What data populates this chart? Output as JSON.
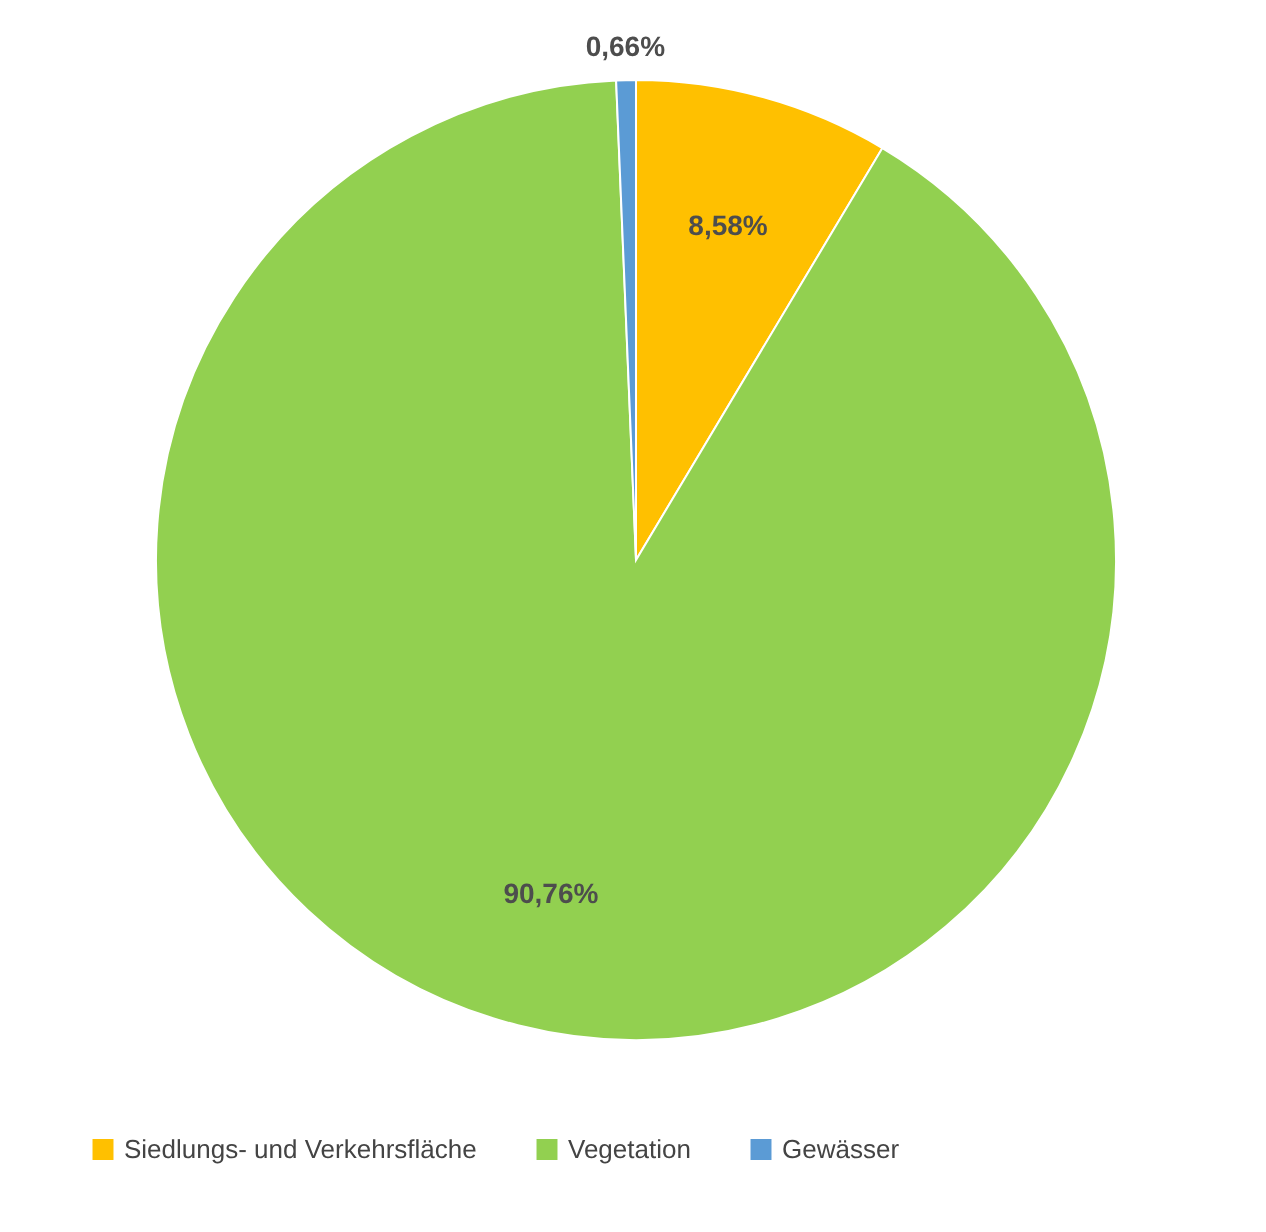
{
  "chart_data": {
    "type": "pie",
    "categories": [
      "Siedlungs- und Verkehrsfläche",
      "Vegetation",
      "Gewässer"
    ],
    "values": [
      8.58,
      90.76,
      0.66
    ],
    "colors": [
      "#ffc000",
      "#92d050",
      "#5b9bd5"
    ],
    "value_labels": [
      "8,58%",
      "90,76%",
      "0,66%"
    ],
    "legend": "bottom"
  }
}
